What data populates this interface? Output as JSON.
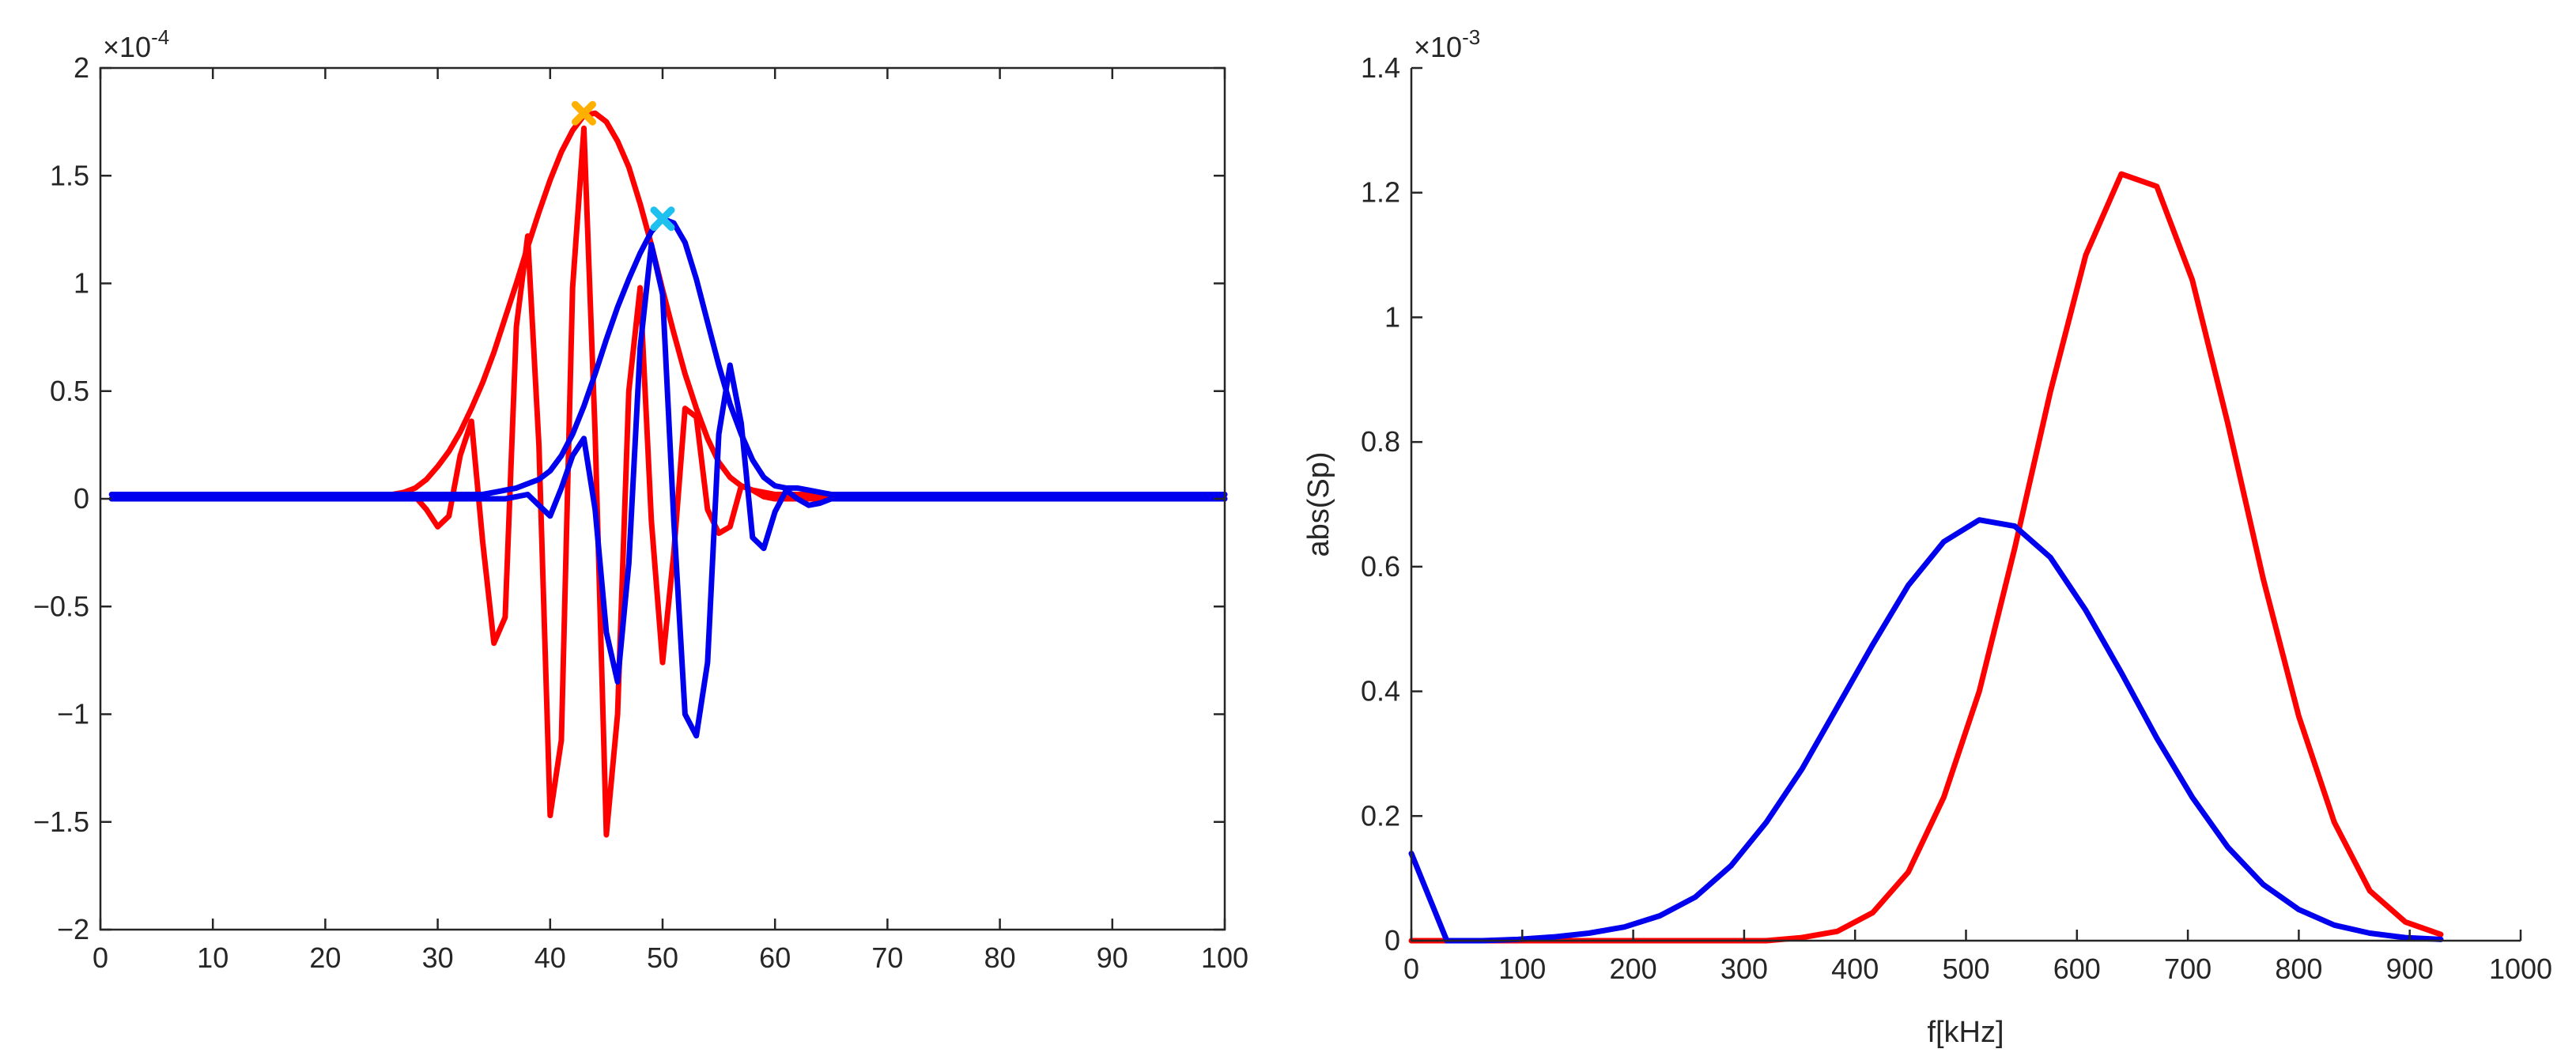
{
  "chart_data": [
    {
      "type": "line",
      "title": "",
      "xlabel": "",
      "ylabel": "",
      "xlim": [
        0,
        100
      ],
      "ylim": [
        -2,
        2
      ],
      "xticks": [
        0,
        10,
        20,
        30,
        40,
        50,
        60,
        70,
        80,
        90,
        100
      ],
      "yticks": [
        -2,
        -1.5,
        -1,
        -0.5,
        0,
        0.5,
        1,
        1.5,
        2
      ],
      "y_exponent": {
        "base": "×10",
        "power": "-4"
      },
      "grid": false,
      "series": [
        {
          "color": "#ff0000",
          "x": [
            1,
            2,
            3,
            4,
            5,
            6,
            7,
            8,
            9,
            10,
            11,
            12,
            13,
            14,
            15,
            16,
            17,
            18,
            19,
            20,
            21,
            22,
            23,
            24,
            25,
            26,
            27,
            28,
            29,
            30,
            31,
            32,
            33,
            34,
            35,
            36,
            37,
            38,
            39,
            40,
            41,
            42,
            43,
            44,
            45,
            46,
            47,
            48,
            49,
            50,
            51,
            52,
            53,
            54,
            55,
            56,
            57,
            58,
            59,
            60,
            61,
            62,
            63,
            64,
            65,
            66,
            67,
            68,
            69,
            70,
            71,
            72,
            73,
            74,
            75,
            76,
            77,
            78,
            79,
            80,
            81,
            82,
            83,
            84,
            85,
            86,
            87,
            88,
            89,
            90,
            91,
            92,
            93,
            94,
            95,
            96,
            97,
            98,
            99,
            100
          ],
          "y": [
            0,
            0,
            0,
            0,
            0,
            0,
            0,
            0,
            0,
            0,
            0,
            0,
            0,
            0,
            0,
            0,
            0,
            0,
            0,
            0,
            0,
            0,
            0,
            0,
            0,
            0,
            0,
            0.01,
            -0.05,
            -0.13,
            -0.08,
            0.2,
            0.36,
            -0.2,
            -0.67,
            -0.55,
            0.8,
            1.22,
            0.25,
            -1.47,
            -1.12,
            0.98,
            1.72,
            0.3,
            -1.56,
            -1.0,
            0.5,
            0.98,
            -0.1,
            -0.76,
            -0.25,
            0.42,
            0.38,
            -0.05,
            -0.16,
            -0.13,
            0.06,
            0.04,
            0.01,
            0,
            0,
            0,
            0,
            0,
            0,
            0,
            0,
            0,
            0,
            0,
            0,
            0,
            0,
            0,
            0,
            0,
            0,
            0,
            0,
            0,
            0,
            0,
            0,
            0,
            0,
            0,
            0,
            0,
            0,
            0,
            0,
            0,
            0,
            0,
            0,
            0,
            0,
            0,
            0,
            0
          ]
        },
        {
          "color": "#ff0000",
          "x": [
            1,
            2,
            3,
            4,
            5,
            6,
            7,
            8,
            9,
            10,
            11,
            12,
            13,
            14,
            15,
            16,
            17,
            18,
            19,
            20,
            21,
            22,
            23,
            24,
            25,
            26,
            27,
            28,
            29,
            30,
            31,
            32,
            33,
            34,
            35,
            36,
            37,
            38,
            39,
            40,
            41,
            42,
            43,
            44,
            45,
            46,
            47,
            48,
            49,
            50,
            51,
            52,
            53,
            54,
            55,
            56,
            57,
            58,
            59,
            60,
            61,
            62,
            63,
            64,
            65,
            66,
            67,
            68,
            69,
            70,
            71,
            72,
            73,
            74,
            75,
            76,
            77,
            78,
            79,
            80,
            81,
            82,
            83,
            84,
            85,
            86,
            87,
            88,
            89,
            90,
            91,
            92,
            93,
            94,
            95,
            96,
            97,
            98,
            99,
            100
          ],
          "y": [
            0.02,
            0.02,
            0.02,
            0.02,
            0.02,
            0.02,
            0.02,
            0.02,
            0.02,
            0.02,
            0.02,
            0.02,
            0.02,
            0.02,
            0.02,
            0.02,
            0.02,
            0.02,
            0.02,
            0.02,
            0.02,
            0.02,
            0.02,
            0.02,
            0.02,
            0.02,
            0.03,
            0.05,
            0.09,
            0.15,
            0.22,
            0.31,
            0.42,
            0.54,
            0.68,
            0.84,
            1.0,
            1.17,
            1.33,
            1.48,
            1.61,
            1.71,
            1.78,
            1.79,
            1.75,
            1.66,
            1.54,
            1.37,
            1.18,
            0.97,
            0.77,
            0.58,
            0.42,
            0.28,
            0.17,
            0.1,
            0.06,
            0.04,
            0.03,
            0.02,
            0.02,
            0.02,
            0.02,
            0.02,
            0.02,
            0.02,
            0.02,
            0.02,
            0.02,
            0.02,
            0.02,
            0.02,
            0.02,
            0.02,
            0.02,
            0.02,
            0.02,
            0.02,
            0.02,
            0.02,
            0.02,
            0.02,
            0.02,
            0.02,
            0.02,
            0.02,
            0.02,
            0.02,
            0.02,
            0.02,
            0.02,
            0.02,
            0.02,
            0.02,
            0.02,
            0.02,
            0.02,
            0.02,
            0.02,
            0.02
          ]
        },
        {
          "color": "#0000ee",
          "x": [
            1,
            2,
            3,
            4,
            5,
            6,
            7,
            8,
            9,
            10,
            11,
            12,
            13,
            14,
            15,
            16,
            17,
            18,
            19,
            20,
            21,
            22,
            23,
            24,
            25,
            26,
            27,
            28,
            29,
            30,
            31,
            32,
            33,
            34,
            35,
            36,
            37,
            38,
            39,
            40,
            41,
            42,
            43,
            44,
            45,
            46,
            47,
            48,
            49,
            50,
            51,
            52,
            53,
            54,
            55,
            56,
            57,
            58,
            59,
            60,
            61,
            62,
            63,
            64,
            65,
            66,
            67,
            68,
            69,
            70,
            71,
            72,
            73,
            74,
            75,
            76,
            77,
            78,
            79,
            80,
            81,
            82,
            83,
            84,
            85,
            86,
            87,
            88,
            89,
            90,
            91,
            92,
            93,
            94,
            95,
            96,
            97,
            98,
            99,
            100
          ],
          "y": [
            0,
            0,
            0,
            0,
            0,
            0,
            0,
            0,
            0,
            0,
            0,
            0,
            0,
            0,
            0,
            0,
            0,
            0,
            0,
            0,
            0,
            0,
            0,
            0,
            0,
            0,
            0,
            0,
            0,
            0,
            0,
            0,
            0,
            0,
            0,
            0,
            0.01,
            0.02,
            -0.03,
            -0.08,
            0.05,
            0.2,
            0.28,
            -0.05,
            -0.62,
            -0.85,
            -0.3,
            0.7,
            1.18,
            0.95,
            -0.1,
            -1.0,
            -1.1,
            -0.76,
            0.3,
            0.62,
            0.35,
            -0.18,
            -0.23,
            -0.06,
            0.04,
            0.0,
            -0.03,
            -0.02,
            0,
            0,
            0,
            0,
            0,
            0,
            0,
            0,
            0,
            0,
            0,
            0,
            0,
            0,
            0,
            0,
            0,
            0,
            0,
            0,
            0,
            0,
            0,
            0,
            0,
            0,
            0,
            0,
            0,
            0,
            0,
            0,
            0,
            0,
            0,
            0
          ]
        },
        {
          "color": "#0000ee",
          "x": [
            1,
            2,
            3,
            4,
            5,
            6,
            7,
            8,
            9,
            10,
            11,
            12,
            13,
            14,
            15,
            16,
            17,
            18,
            19,
            20,
            21,
            22,
            23,
            24,
            25,
            26,
            27,
            28,
            29,
            30,
            31,
            32,
            33,
            34,
            35,
            36,
            37,
            38,
            39,
            40,
            41,
            42,
            43,
            44,
            45,
            46,
            47,
            48,
            49,
            50,
            51,
            52,
            53,
            54,
            55,
            56,
            57,
            58,
            59,
            60,
            61,
            62,
            63,
            64,
            65,
            66,
            67,
            68,
            69,
            70,
            71,
            72,
            73,
            74,
            75,
            76,
            77,
            78,
            79,
            80,
            81,
            82,
            83,
            84,
            85,
            86,
            87,
            88,
            89,
            90,
            91,
            92,
            93,
            94,
            95,
            96,
            97,
            98,
            99,
            100
          ],
          "y": [
            0.02,
            0.02,
            0.02,
            0.02,
            0.02,
            0.02,
            0.02,
            0.02,
            0.02,
            0.02,
            0.02,
            0.02,
            0.02,
            0.02,
            0.02,
            0.02,
            0.02,
            0.02,
            0.02,
            0.02,
            0.02,
            0.02,
            0.02,
            0.02,
            0.02,
            0.02,
            0.02,
            0.02,
            0.02,
            0.02,
            0.02,
            0.02,
            0.02,
            0.02,
            0.03,
            0.04,
            0.05,
            0.07,
            0.09,
            0.13,
            0.2,
            0.3,
            0.43,
            0.58,
            0.74,
            0.89,
            1.02,
            1.14,
            1.24,
            1.3,
            1.28,
            1.19,
            1.02,
            0.82,
            0.62,
            0.44,
            0.3,
            0.18,
            0.1,
            0.06,
            0.05,
            0.05,
            0.04,
            0.03,
            0.02,
            0.02,
            0.02,
            0.02,
            0.02,
            0.02,
            0.02,
            0.02,
            0.02,
            0.02,
            0.02,
            0.02,
            0.02,
            0.02,
            0.02,
            0.02,
            0.02,
            0.02,
            0.02,
            0.02,
            0.02,
            0.02,
            0.02,
            0.02,
            0.02,
            0.02,
            0.02,
            0.02,
            0.02,
            0.02,
            0.02,
            0.02,
            0.02,
            0.02,
            0.02,
            0.02
          ]
        }
      ],
      "markers": [
        {
          "x": 43,
          "y": 1.79,
          "color": "#ffb000",
          "symbol": "x"
        },
        {
          "x": 50,
          "y": 1.3,
          "color": "#1ec0f0",
          "symbol": "x"
        }
      ]
    },
    {
      "type": "line",
      "title": "",
      "xlabel": "f[kHz]",
      "ylabel": "abs(Sp)",
      "xlim": [
        0,
        1000
      ],
      "ylim": [
        0,
        1.4
      ],
      "xticks": [
        0,
        100,
        200,
        300,
        400,
        500,
        600,
        700,
        800,
        900,
        1000
      ],
      "yticks": [
        0,
        0.2,
        0.4,
        0.6,
        0.8,
        1,
        1.2,
        1.4
      ],
      "y_exponent": {
        "base": "×10",
        "power": "-3"
      },
      "grid": false,
      "series": [
        {
          "color": "#ff0000",
          "x": [
            0,
            32,
            64,
            96,
            128,
            160,
            192,
            224,
            256,
            288,
            320,
            352,
            384,
            416,
            448,
            480,
            512,
            544,
            576,
            608,
            640,
            672,
            704,
            736,
            768,
            800,
            832,
            864,
            896,
            928
          ],
          "y": [
            0,
            0,
            0,
            0,
            0,
            0,
            0,
            0,
            0,
            0,
            0,
            0.005,
            0.015,
            0.045,
            0.11,
            0.23,
            0.4,
            0.63,
            0.88,
            1.1,
            1.23,
            1.21,
            1.06,
            0.83,
            0.58,
            0.36,
            0.19,
            0.08,
            0.03,
            0.01
          ]
        },
        {
          "color": "#0000ee",
          "x": [
            0,
            32,
            64,
            96,
            128,
            160,
            192,
            224,
            256,
            288,
            320,
            352,
            384,
            416,
            448,
            480,
            512,
            544,
            576,
            608,
            640,
            672,
            704,
            736,
            768,
            800,
            832,
            864,
            896,
            928
          ],
          "y": [
            0.14,
            0,
            0,
            0.002,
            0.006,
            0.012,
            0.022,
            0.04,
            0.07,
            0.12,
            0.19,
            0.275,
            0.375,
            0.475,
            0.57,
            0.64,
            0.675,
            0.665,
            0.615,
            0.53,
            0.43,
            0.325,
            0.23,
            0.15,
            0.09,
            0.05,
            0.025,
            0.012,
            0.005,
            0.002
          ]
        }
      ]
    }
  ]
}
